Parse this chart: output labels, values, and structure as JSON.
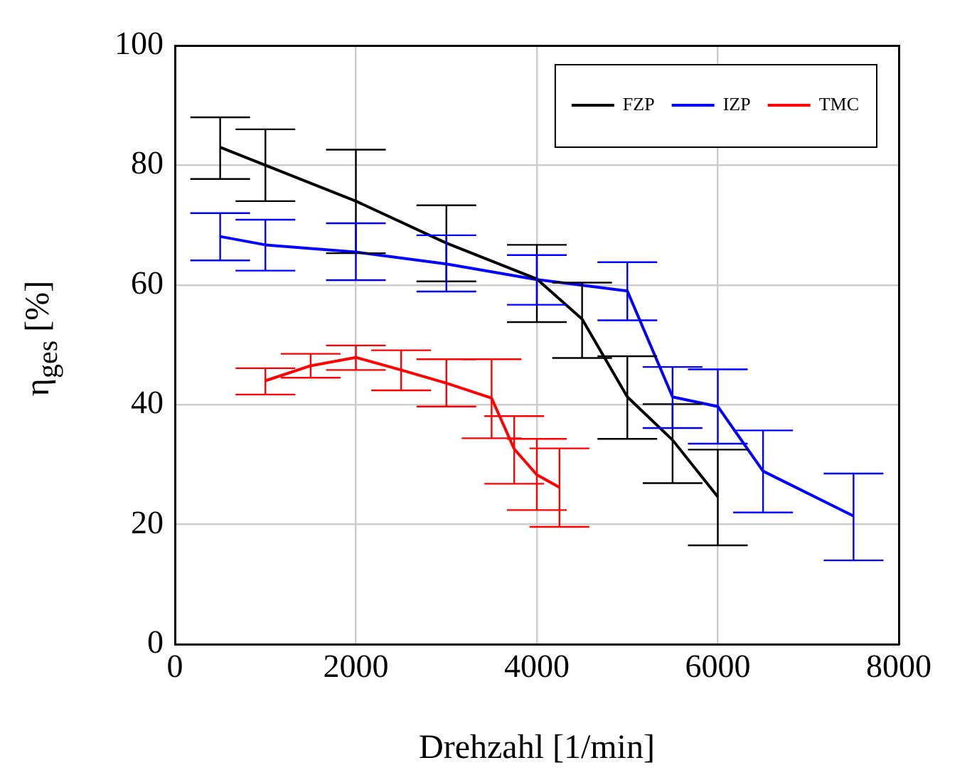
{
  "chart_data": {
    "type": "line",
    "xlabel": "Drehzahl [1/min]",
    "ylabel": "η$_{ges}$ [%]",
    "xlim": [
      0,
      8000
    ],
    "xticks": [
      0,
      2000,
      4000,
      6000,
      8000
    ],
    "ylim": [
      0,
      100
    ],
    "yticks": [
      0,
      20,
      40,
      60,
      80,
      100
    ],
    "grid": true,
    "legend": "top right",
    "line_style": "solid",
    "series": [
      {
        "name": "FZP",
        "color": "#000000",
        "x": [
          500,
          1000,
          2000,
          3000,
          4000,
          4500,
          5000,
          5500,
          6000
        ],
        "values": [
          83,
          80,
          74,
          67,
          61,
          54.3,
          41.3,
          34.1,
          24.6
        ],
        "errors": [
          [
            77.7,
            88
          ],
          [
            74,
            86
          ],
          [
            65.3,
            82.6
          ],
          [
            60.6,
            73.3
          ],
          [
            53.8,
            66.7
          ],
          [
            47.8,
            60.4
          ],
          [
            34.3,
            48.1
          ],
          [
            26.9,
            40.1
          ],
          [
            16.5,
            32.5
          ]
        ]
      },
      {
        "name": "IZP",
        "color": "#0000ff",
        "x": [
          500,
          1000,
          2000,
          3000,
          4000,
          5000,
          5500,
          6000,
          6500,
          7500
        ],
        "values": [
          68.1,
          66.7,
          65.5,
          63.5,
          60.9,
          59,
          41.3,
          39.7,
          28.9,
          21.4
        ],
        "errors": [
          [
            64.1,
            72
          ],
          [
            62.4,
            70.9
          ],
          [
            60.8,
            70.3
          ],
          [
            58.9,
            68.3
          ],
          [
            56.7,
            65
          ],
          [
            54.1,
            63.8
          ],
          [
            36.1,
            46.3
          ],
          [
            33.5,
            45.9
          ],
          [
            22,
            35.7
          ],
          [
            14,
            28.5
          ]
        ]
      },
      {
        "name": "TMC",
        "color": "#ff0000",
        "x": [
          1000,
          1500,
          2000,
          2500,
          3000,
          3500,
          3750,
          4000,
          4250
        ],
        "values": [
          44,
          46.5,
          47.9,
          45.8,
          43.6,
          41.1,
          32.6,
          28.3,
          26.2
        ],
        "errors": [
          [
            41.7,
            46.1
          ],
          [
            44.5,
            48.5
          ],
          [
            45.8,
            49.9
          ],
          [
            42.4,
            49.1
          ],
          [
            39.7,
            47.6
          ],
          [
            34.4,
            47.6
          ],
          [
            26.8,
            38.1
          ],
          [
            22.4,
            34.3
          ],
          [
            19.6,
            32.7
          ]
        ]
      }
    ]
  }
}
